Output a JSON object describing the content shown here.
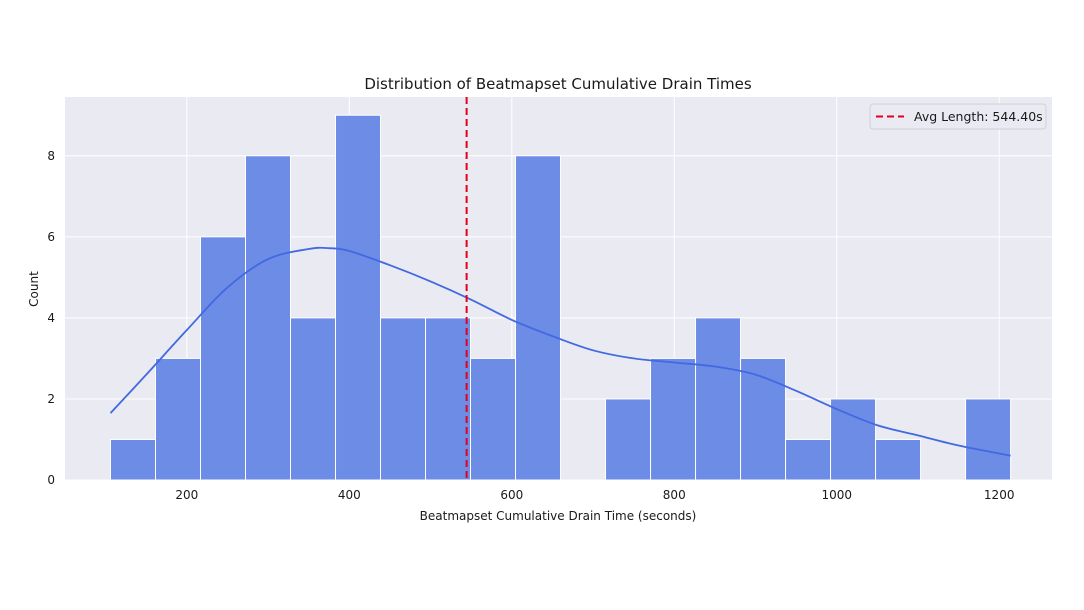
{
  "chart_data": {
    "type": "bar",
    "title": "Distribution of Beatmapset Cumulative Drain Times",
    "xlabel": "Beatmapset Cumulative Drain Time (seconds)",
    "ylabel": "Count",
    "xlim": [
      50,
      1265
    ],
    "ylim": [
      0,
      9.45
    ],
    "x_ticks": [
      200,
      400,
      600,
      800,
      1000,
      1200
    ],
    "y_ticks": [
      0,
      2,
      4,
      6,
      8
    ],
    "grid": true,
    "bins": {
      "edges": [
        106,
        161.4,
        216.8,
        272.2,
        327.6,
        383,
        438.4,
        493.8,
        549.2,
        604.6,
        660,
        715.4,
        770.8,
        826.2,
        881.6,
        937,
        992.4,
        1047.8,
        1103.2,
        1158.6,
        1214
      ],
      "counts": [
        1,
        3,
        6,
        8,
        4,
        9,
        4,
        4,
        3,
        8,
        0,
        2,
        3,
        4,
        3,
        1,
        2,
        1,
        0,
        2
      ]
    },
    "kde": {
      "x": [
        106,
        150,
        200,
        250,
        300,
        350,
        375,
        400,
        450,
        500,
        550,
        600,
        650,
        700,
        750,
        800,
        850,
        900,
        950,
        1000,
        1050,
        1100,
        1150,
        1214
      ],
      "y": [
        1.65,
        2.6,
        3.7,
        4.75,
        5.45,
        5.7,
        5.72,
        5.65,
        5.3,
        4.9,
        4.45,
        3.95,
        3.55,
        3.2,
        3.0,
        2.9,
        2.8,
        2.6,
        2.2,
        1.75,
        1.35,
        1.1,
        0.85,
        0.6
      ]
    },
    "avg_line": {
      "x": 544.4,
      "label": "Avg Length: 544.40s"
    },
    "legend": {
      "placement": "top-right"
    },
    "colors": {
      "bar_fill": "#6d8ce6",
      "bar_edge": "#ffffff",
      "kde": "#4169e1",
      "avg_line": "#e3001b",
      "plot_bg": "#eaeaf2",
      "grid": "#ffffff"
    }
  }
}
